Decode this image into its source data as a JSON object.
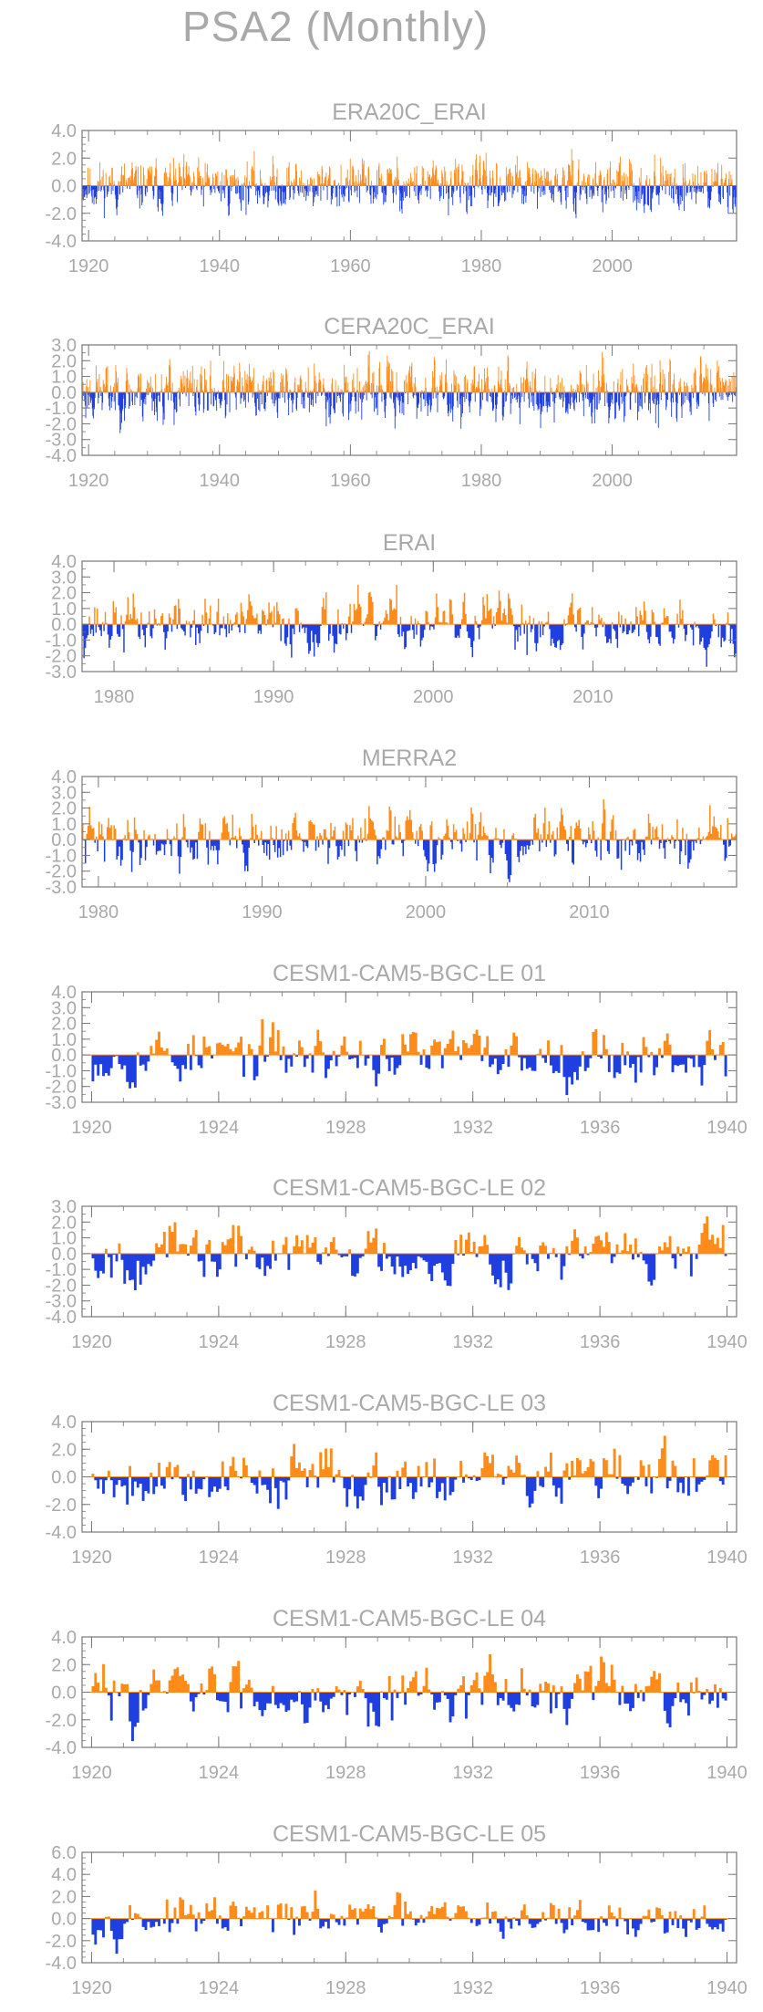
{
  "page_title": "PSA2 (Monthly)",
  "colors": {
    "positive": "#ff8c1a",
    "negative": "#1f3fe0",
    "text": "#a9a9a9",
    "axis": "#777777"
  },
  "chart_data": [
    {
      "type": "area",
      "title": "ERA20C_ERAI",
      "xlim": [
        1919,
        2019
      ],
      "ylim": [
        -4,
        4
      ],
      "yticks": [
        {
          "v": 4,
          "label": "4.0"
        },
        {
          "v": 2,
          "label": "2.0"
        },
        {
          "v": 0,
          "label": "0.0"
        },
        {
          "v": -2,
          "label": "-2.0"
        },
        {
          "v": -4,
          "label": "-4.0"
        }
      ],
      "xticks": [
        {
          "v": 1920,
          "label": "1920"
        },
        {
          "v": 1940,
          "label": "1940"
        },
        {
          "v": 1960,
          "label": "1960"
        },
        {
          "v": 1980,
          "label": "1980"
        },
        {
          "v": 2000,
          "label": "2000"
        }
      ],
      "amp": 1.0,
      "seed": 11
    },
    {
      "type": "area",
      "title": "CERA20C_ERAI",
      "xlim": [
        1919,
        2019
      ],
      "ylim": [
        -4,
        3
      ],
      "yticks": [
        {
          "v": 3,
          "label": "3.0"
        },
        {
          "v": 2,
          "label": "2.0"
        },
        {
          "v": 1,
          "label": "1.0"
        },
        {
          "v": 0,
          "label": "0.0"
        },
        {
          "v": -1,
          "label": "-1.0"
        },
        {
          "v": -2,
          "label": "-2.0"
        },
        {
          "v": -3,
          "label": "-3.0"
        },
        {
          "v": -4,
          "label": "-4.0"
        }
      ],
      "xticks": [
        {
          "v": 1920,
          "label": "1920"
        },
        {
          "v": 1940,
          "label": "1940"
        },
        {
          "v": 1960,
          "label": "1960"
        },
        {
          "v": 1980,
          "label": "1980"
        },
        {
          "v": 2000,
          "label": "2000"
        }
      ],
      "amp": 1.0,
      "seed": 23
    },
    {
      "type": "area",
      "title": "ERAI",
      "xlim": [
        1978,
        2019
      ],
      "ylim": [
        -3,
        4
      ],
      "yticks": [
        {
          "v": 4,
          "label": "4.0"
        },
        {
          "v": 3,
          "label": "3.0"
        },
        {
          "v": 2,
          "label": "2.0"
        },
        {
          "v": 1,
          "label": "1.0"
        },
        {
          "v": 0,
          "label": "0.0"
        },
        {
          "v": -1,
          "label": "-1.0"
        },
        {
          "v": -2,
          "label": "-2.0"
        },
        {
          "v": -3,
          "label": "-3.0"
        }
      ],
      "xticks": [
        {
          "v": 1980,
          "label": "1980"
        },
        {
          "v": 1990,
          "label": "1990"
        },
        {
          "v": 2000,
          "label": "2000"
        },
        {
          "v": 2010,
          "label": "2010"
        }
      ],
      "amp": 1.0,
      "seed": 37
    },
    {
      "type": "area",
      "title": "MERRA2",
      "xlim": [
        1979,
        2019
      ],
      "ylim": [
        -3,
        4
      ],
      "yticks": [
        {
          "v": 4,
          "label": "4.0"
        },
        {
          "v": 3,
          "label": "3.0"
        },
        {
          "v": 2,
          "label": "2.0"
        },
        {
          "v": 1,
          "label": "1.0"
        },
        {
          "v": 0,
          "label": "0.0"
        },
        {
          "v": -1,
          "label": "-1.0"
        },
        {
          "v": -2,
          "label": "-2.0"
        },
        {
          "v": -3,
          "label": "-3.0"
        }
      ],
      "xticks": [
        {
          "v": 1980,
          "label": "1980"
        },
        {
          "v": 1990,
          "label": "1990"
        },
        {
          "v": 2000,
          "label": "2000"
        },
        {
          "v": 2010,
          "label": "2010"
        }
      ],
      "amp": 1.0,
      "seed": 41
    },
    {
      "type": "area",
      "title": "CESM1-CAM5-BGC-LE 01",
      "xlim": [
        1919.7,
        1940.3
      ],
      "ylim": [
        -3,
        4
      ],
      "yticks": [
        {
          "v": 4,
          "label": "4.0"
        },
        {
          "v": 3,
          "label": "3.0"
        },
        {
          "v": 2,
          "label": "2.0"
        },
        {
          "v": 1,
          "label": "1.0"
        },
        {
          "v": 0,
          "label": "0.0"
        },
        {
          "v": -1,
          "label": "-1.0"
        },
        {
          "v": -2,
          "label": "-2.0"
        },
        {
          "v": -3,
          "label": "-3.0"
        }
      ],
      "xticks": [
        {
          "v": 1920,
          "label": "1920"
        },
        {
          "v": 1924,
          "label": "1924"
        },
        {
          "v": 1928,
          "label": "1928"
        },
        {
          "v": 1932,
          "label": "1932"
        },
        {
          "v": 1936,
          "label": "1936"
        },
        {
          "v": 1940,
          "label": "1940"
        }
      ],
      "amp": 1.0,
      "seed": 53
    },
    {
      "type": "area",
      "title": "CESM1-CAM5-BGC-LE 02",
      "xlim": [
        1919.7,
        1940.3
      ],
      "ylim": [
        -4,
        3
      ],
      "yticks": [
        {
          "v": 3,
          "label": "3.0"
        },
        {
          "v": 2,
          "label": "2.0"
        },
        {
          "v": 1,
          "label": "1.0"
        },
        {
          "v": 0,
          "label": "0.0"
        },
        {
          "v": -1,
          "label": "-1.0"
        },
        {
          "v": -2,
          "label": "-2.0"
        },
        {
          "v": -3,
          "label": "-3.0"
        },
        {
          "v": -4,
          "label": "-4.0"
        }
      ],
      "xticks": [
        {
          "v": 1920,
          "label": "1920"
        },
        {
          "v": 1924,
          "label": "1924"
        },
        {
          "v": 1928,
          "label": "1928"
        },
        {
          "v": 1932,
          "label": "1932"
        },
        {
          "v": 1936,
          "label": "1936"
        },
        {
          "v": 1940,
          "label": "1940"
        }
      ],
      "amp": 1.0,
      "seed": 67
    },
    {
      "type": "area",
      "title": "CESM1-CAM5-BGC-LE 03",
      "xlim": [
        1919.7,
        1940.3
      ],
      "ylim": [
        -4,
        4
      ],
      "yticks": [
        {
          "v": 4,
          "label": "4.0"
        },
        {
          "v": 2,
          "label": "2.0"
        },
        {
          "v": 0,
          "label": "0.0"
        },
        {
          "v": -2,
          "label": "-2.0"
        },
        {
          "v": -4,
          "label": "-4.0"
        }
      ],
      "xticks": [
        {
          "v": 1920,
          "label": "1920"
        },
        {
          "v": 1924,
          "label": "1924"
        },
        {
          "v": 1928,
          "label": "1928"
        },
        {
          "v": 1932,
          "label": "1932"
        },
        {
          "v": 1936,
          "label": "1936"
        },
        {
          "v": 1940,
          "label": "1940"
        }
      ],
      "amp": 1.2,
      "seed": 79
    },
    {
      "type": "area",
      "title": "CESM1-CAM5-BGC-LE 04",
      "xlim": [
        1919.7,
        1940.3
      ],
      "ylim": [
        -4,
        4
      ],
      "yticks": [
        {
          "v": 4,
          "label": "4.0"
        },
        {
          "v": 2,
          "label": "2.0"
        },
        {
          "v": 0,
          "label": "0.0"
        },
        {
          "v": -2,
          "label": "-2.0"
        },
        {
          "v": -4,
          "label": "-4.0"
        }
      ],
      "xticks": [
        {
          "v": 1920,
          "label": "1920"
        },
        {
          "v": 1924,
          "label": "1924"
        },
        {
          "v": 1928,
          "label": "1928"
        },
        {
          "v": 1932,
          "label": "1932"
        },
        {
          "v": 1936,
          "label": "1936"
        },
        {
          "v": 1940,
          "label": "1940"
        }
      ],
      "amp": 1.2,
      "seed": 83
    },
    {
      "type": "area",
      "title": "CESM1-CAM5-BGC-LE 05",
      "xlim": [
        1919.7,
        1940.3
      ],
      "ylim": [
        -4,
        6
      ],
      "yticks": [
        {
          "v": 6,
          "label": "6.0"
        },
        {
          "v": 4,
          "label": "4.0"
        },
        {
          "v": 2,
          "label": "2.0"
        },
        {
          "v": 0,
          "label": "0.0"
        },
        {
          "v": -2,
          "label": "-2.0"
        },
        {
          "v": -4,
          "label": "-4.0"
        }
      ],
      "xticks": [
        {
          "v": 1920,
          "label": "1920"
        },
        {
          "v": 1924,
          "label": "1924"
        },
        {
          "v": 1928,
          "label": "1928"
        },
        {
          "v": 1932,
          "label": "1932"
        },
        {
          "v": 1936,
          "label": "1936"
        },
        {
          "v": 1940,
          "label": "1940"
        }
      ],
      "amp": 1.0,
      "seed": 97
    }
  ]
}
